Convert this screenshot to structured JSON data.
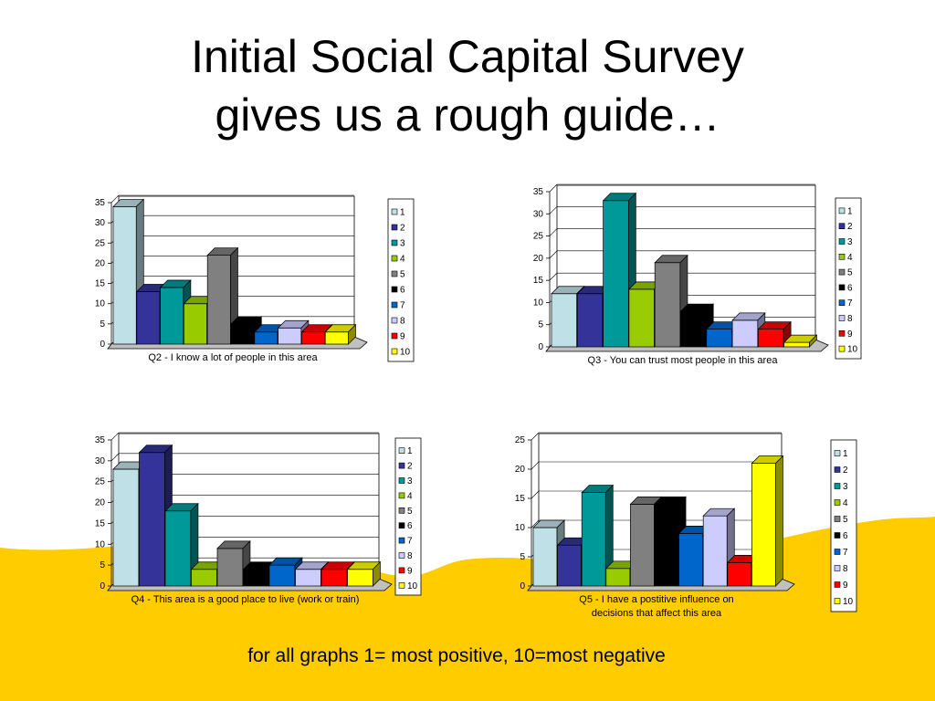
{
  "slide": {
    "title_line1": "Initial Social Capital Survey",
    "title_line2": "gives us a rough guide…",
    "footer": "for all graphs 1= most positive, 10=most negative"
  },
  "legend_items": [
    "1",
    "2",
    "3",
    "4",
    "5",
    "6",
    "7",
    "8",
    "9",
    "10"
  ],
  "colors": [
    "#bfe0e6",
    "#333399",
    "#009999",
    "#99cc00",
    "#808080",
    "#000000",
    "#0066cc",
    "#ccccff",
    "#ff0000",
    "#ffff00"
  ],
  "chart_data": [
    {
      "type": "bar",
      "xlabel": "Q2 - I know a lot of people in this area",
      "categories": [
        "1",
        "2",
        "3",
        "4",
        "5",
        "6",
        "7",
        "8",
        "9",
        "10"
      ],
      "values": [
        34,
        13,
        14,
        10,
        22,
        5,
        3,
        4,
        3,
        3
      ],
      "ylim": [
        0,
        35
      ],
      "yticks": [
        0,
        5,
        10,
        15,
        20,
        25,
        30,
        35
      ],
      "grid": true,
      "legend": "right"
    },
    {
      "type": "bar",
      "xlabel": "Q3 - You can trust most people in this area",
      "categories": [
        "1",
        "2",
        "3",
        "4",
        "5",
        "6",
        "7",
        "8",
        "9",
        "10"
      ],
      "values": [
        12,
        12,
        33,
        13,
        19,
        8,
        4,
        6,
        4,
        1
      ],
      "ylim": [
        0,
        35
      ],
      "yticks": [
        0,
        5,
        10,
        15,
        20,
        25,
        30,
        35
      ],
      "grid": true,
      "legend": "right"
    },
    {
      "type": "bar",
      "xlabel": "Q4 - This area is a good place to live (work or train)",
      "categories": [
        "1",
        "2",
        "3",
        "4",
        "5",
        "6",
        "7",
        "8",
        "9",
        "10"
      ],
      "values": [
        28,
        32,
        18,
        4,
        9,
        4,
        5,
        4,
        4,
        4
      ],
      "ylim": [
        0,
        35
      ],
      "yticks": [
        0,
        5,
        10,
        15,
        20,
        25,
        30,
        35
      ],
      "grid": true,
      "legend": "right"
    },
    {
      "type": "bar",
      "xlabel": "Q5 - I have a postitive influence on decisions that affect this area",
      "categories": [
        "1",
        "2",
        "3",
        "4",
        "5",
        "6",
        "7",
        "8",
        "9",
        "10"
      ],
      "values": [
        10,
        7,
        16,
        3,
        14,
        14,
        9,
        12,
        4,
        21
      ],
      "ylim": [
        0,
        25
      ],
      "yticks": [
        0,
        5,
        10,
        15,
        20,
        25
      ],
      "grid": true,
      "legend": "right"
    }
  ]
}
